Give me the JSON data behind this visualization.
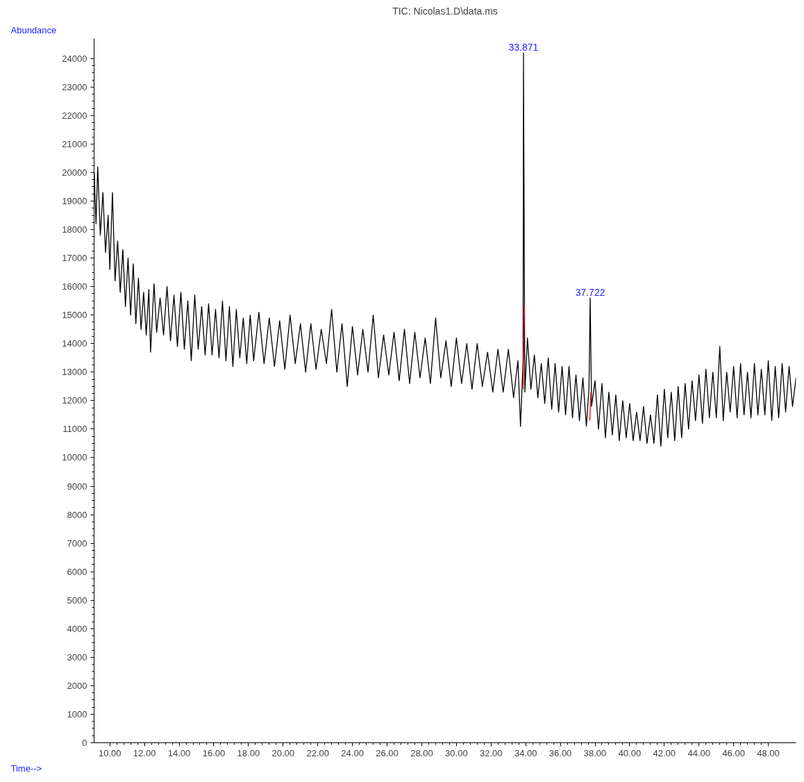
{
  "chart_data": {
    "type": "line",
    "title": "TIC: Nicolas1.D\\data.ms",
    "xlabel": "Time-->",
    "ylabel": "Abundance",
    "xlim": [
      9.09,
      49.6
    ],
    "ylim": [
      0,
      24700
    ],
    "xticks": [
      {
        "value": 10,
        "label": "10.00"
      },
      {
        "value": 12,
        "label": "12.00"
      },
      {
        "value": 14,
        "label": "14.00"
      },
      {
        "value": 16,
        "label": "16.00"
      },
      {
        "value": 18,
        "label": "18.00"
      },
      {
        "value": 20,
        "label": "20.00"
      },
      {
        "value": 22,
        "label": "22.00"
      },
      {
        "value": 24,
        "label": "24.00"
      },
      {
        "value": 26,
        "label": "26.00"
      },
      {
        "value": 28,
        "label": "28.00"
      },
      {
        "value": 30,
        "label": "30.00"
      },
      {
        "value": 32,
        "label": "32.00"
      },
      {
        "value": 34,
        "label": "34.00"
      },
      {
        "value": 36,
        "label": "36.00"
      },
      {
        "value": 38,
        "label": "38.00"
      },
      {
        "value": 40,
        "label": "40.00"
      },
      {
        "value": 42,
        "label": "42.00"
      },
      {
        "value": 44,
        "label": "44.00"
      },
      {
        "value": 46,
        "label": "46.00"
      },
      {
        "value": 48,
        "label": "48.00"
      }
    ],
    "yticks": [
      0,
      1000,
      2000,
      3000,
      4000,
      5000,
      6000,
      7000,
      8000,
      9000,
      10000,
      11000,
      12000,
      13000,
      14000,
      15000,
      16000,
      17000,
      18000,
      19000,
      20000,
      21000,
      22000,
      23000,
      24000
    ],
    "grid": false,
    "marker": "none",
    "line_style": "solid",
    "annotations": [
      {
        "text": "33.871",
        "x": 33.871,
        "y": 24200
      },
      {
        "text": "37.722",
        "x": 37.722,
        "y": 15600
      }
    ],
    "series": [
      {
        "color": "#000000",
        "x": [
          9.1,
          9.2,
          9.3,
          9.45,
          9.6,
          9.75,
          9.9,
          10.0,
          10.15,
          10.3,
          10.45,
          10.6,
          10.75,
          10.9,
          11.05,
          11.2,
          11.35,
          11.5,
          11.65,
          11.8,
          11.95,
          12.1,
          12.25,
          12.35,
          12.55,
          12.7,
          12.9,
          13.1,
          13.3,
          13.5,
          13.7,
          13.9,
          14.1,
          14.3,
          14.5,
          14.7,
          14.9,
          15.1,
          15.3,
          15.5,
          15.7,
          15.9,
          16.1,
          16.3,
          16.5,
          16.7,
          16.9,
          17.1,
          17.3,
          17.5,
          17.7,
          17.9,
          18.1,
          18.3,
          18.6,
          18.9,
          19.2,
          19.5,
          19.8,
          20.1,
          20.4,
          20.7,
          21.0,
          21.3,
          21.6,
          21.9,
          22.2,
          22.5,
          22.8,
          23.1,
          23.4,
          23.7,
          24.0,
          24.3,
          24.6,
          24.9,
          25.2,
          25.5,
          25.8,
          26.1,
          26.4,
          26.7,
          27.0,
          27.3,
          27.6,
          27.9,
          28.2,
          28.5,
          28.8,
          29.1,
          29.4,
          29.7,
          30.0,
          30.3,
          30.6,
          30.9,
          31.2,
          31.5,
          31.8,
          32.1,
          32.4,
          32.7,
          33.0,
          33.3,
          33.55,
          33.7,
          33.85,
          33.871,
          33.95,
          34.1,
          34.3,
          34.5,
          34.7,
          34.9,
          35.1,
          35.3,
          35.5,
          35.7,
          35.9,
          36.1,
          36.3,
          36.5,
          36.7,
          36.9,
          37.1,
          37.3,
          37.5,
          37.65,
          37.722,
          37.8,
          38.0,
          38.2,
          38.4,
          38.6,
          38.8,
          39.0,
          39.2,
          39.4,
          39.6,
          39.8,
          40.0,
          40.2,
          40.4,
          40.6,
          40.8,
          41.0,
          41.2,
          41.4,
          41.6,
          41.8,
          42.0,
          42.2,
          42.4,
          42.6,
          42.8,
          43.0,
          43.2,
          43.4,
          43.6,
          43.8,
          44.0,
          44.2,
          44.4,
          44.6,
          44.8,
          45.0,
          45.2,
          45.4,
          45.6,
          45.8,
          46.0,
          46.2,
          46.4,
          46.6,
          46.8,
          47.0,
          47.2,
          47.4,
          47.6,
          47.8,
          48.0,
          48.2,
          48.4,
          48.6,
          48.8,
          49.0,
          49.2,
          49.4,
          49.6
        ],
        "values": [
          20000,
          18200,
          20200,
          17800,
          19300,
          17200,
          18500,
          16600,
          19300,
          16200,
          17600,
          15800,
          17300,
          15300,
          17000,
          15000,
          16800,
          14700,
          16300,
          14500,
          15800,
          14300,
          15900,
          13700,
          16100,
          14400,
          15600,
          14300,
          16000,
          14100,
          15700,
          13900,
          15800,
          13800,
          15500,
          13400,
          15700,
          13800,
          15300,
          13600,
          15400,
          13600,
          15200,
          13500,
          15500,
          13400,
          15300,
          13200,
          15200,
          13500,
          14900,
          13300,
          15000,
          13400,
          15100,
          13300,
          14900,
          13200,
          14800,
          13100,
          15000,
          13300,
          14700,
          13000,
          14700,
          13100,
          14500,
          13300,
          15200,
          13000,
          14700,
          12500,
          14600,
          12900,
          14500,
          13000,
          15000,
          12800,
          14300,
          12900,
          14400,
          12700,
          14500,
          12600,
          14400,
          12800,
          14200,
          12600,
          14900,
          12800,
          14100,
          12500,
          14200,
          12600,
          14000,
          12400,
          14000,
          12500,
          13700,
          12300,
          13800,
          12300,
          13800,
          12100,
          13400,
          11100,
          13400,
          24200,
          12300,
          14200,
          12400,
          13600,
          12100,
          13300,
          11900,
          13500,
          11700,
          13300,
          11600,
          13200,
          11500,
          13200,
          11400,
          12900,
          11300,
          12800,
          11100,
          12400,
          15600,
          11800,
          12700,
          11000,
          12600,
          10700,
          12300,
          10800,
          12200,
          10600,
          12000,
          10700,
          11900,
          10600,
          11600,
          10600,
          11800,
          10500,
          11500,
          10500,
          12200,
          10400,
          12400,
          10700,
          12300,
          10600,
          12500,
          10700,
          12600,
          11000,
          12700,
          11300,
          12900,
          11200,
          13100,
          11400,
          13000,
          11400,
          13900,
          11300,
          13000,
          11600,
          13200,
          11400,
          13300,
          11500,
          13000,
          11400,
          13300,
          11500,
          13100,
          11500,
          13400,
          11300,
          13200,
          11400,
          13300,
          11600,
          13200,
          11800,
          12800
        ]
      },
      {
        "color": "#ff0000",
        "x": [
          33.85,
          33.92
        ],
        "values": [
          12400,
          15300
        ]
      },
      {
        "color": "#ff0000",
        "x": [
          37.7,
          37.76
        ],
        "values": [
          11300,
          12300
        ]
      }
    ]
  }
}
